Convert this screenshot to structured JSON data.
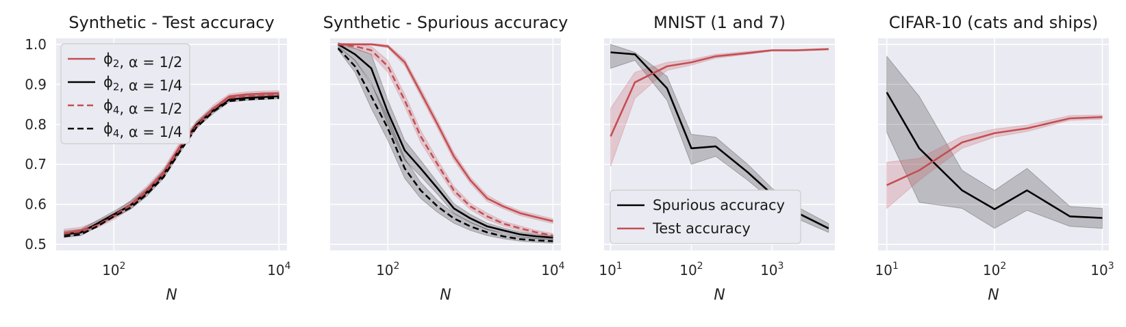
{
  "chart_data": [
    {
      "type": "line",
      "title": "Synthetic - Test accuracy",
      "xlabel": "N",
      "ylabel": "",
      "xscale": "log",
      "xlim": [
        20,
        12500
      ],
      "ylim": [
        0.485,
        1.015
      ],
      "yticks": [
        0.5,
        0.6,
        0.7,
        0.8,
        0.9,
        1.0
      ],
      "ytick_labels": [
        "0.5",
        "0.6",
        "0.7",
        "0.8",
        "0.9",
        "1.0"
      ],
      "xticks": [
        {
          "value": 100,
          "base": "10",
          "exp": "2"
        },
        {
          "value": 10000,
          "base": "10",
          "exp": "4"
        }
      ],
      "show_y_tick_labels": true,
      "legend": {
        "position": "top-left",
        "entries": [
          {
            "label": "ϕ₂, α = 1/2",
            "color": "#c44e52",
            "dash": "solid"
          },
          {
            "label": "ϕ₂, α = 1/4",
            "color": "#000000",
            "dash": "solid"
          },
          {
            "label": "ϕ₄, α = 1/2",
            "color": "#c44e52",
            "dash": "dashed"
          },
          {
            "label": "ϕ₄, α = 1/4",
            "color": "#000000",
            "dash": "dashed"
          }
        ]
      },
      "series": [
        {
          "name": "ϕ₂, α = 1/2",
          "color": "#c44e52",
          "dash": "solid",
          "x": [
            25,
            40,
            63,
            100,
            160,
            250,
            400,
            630,
            1000,
            1600,
            2500,
            4000,
            6300,
            10000
          ],
          "y": [
            0.528,
            0.535,
            0.55,
            0.57,
            0.6,
            0.635,
            0.68,
            0.745,
            0.8,
            0.84,
            0.87,
            0.875,
            0.877,
            0.878
          ],
          "band": [
            0.01,
            0.008,
            0.008,
            0.008,
            0.01,
            0.01,
            0.01,
            0.01,
            0.008,
            0.008,
            0.006,
            0.006,
            0.006,
            0.006
          ]
        },
        {
          "name": "ϕ₂, α = 1/4",
          "color": "#000000",
          "dash": "solid",
          "x": [
            25,
            40,
            63,
            100,
            160,
            250,
            400,
            630,
            1000,
            1600,
            2500,
            4000,
            6300,
            10000
          ],
          "y": [
            0.525,
            0.53,
            0.552,
            0.575,
            0.598,
            0.63,
            0.675,
            0.738,
            0.798,
            0.835,
            0.862,
            0.866,
            0.868,
            0.87
          ],
          "band": [
            0.008,
            0.008,
            0.008,
            0.008,
            0.01,
            0.01,
            0.01,
            0.01,
            0.008,
            0.008,
            0.006,
            0.006,
            0.006,
            0.006
          ]
        },
        {
          "name": "ϕ₄, α = 1/2",
          "color": "#c44e52",
          "dash": "dashed",
          "x": [
            25,
            40,
            63,
            100,
            160,
            250,
            400,
            630,
            1000,
            1600,
            2500,
            4000,
            6300,
            10000
          ],
          "y": [
            0.527,
            0.532,
            0.548,
            0.572,
            0.598,
            0.632,
            0.676,
            0.74,
            0.795,
            0.838,
            0.866,
            0.87,
            0.872,
            0.874
          ],
          "band": []
        },
        {
          "name": "ϕ₄, α = 1/4",
          "color": "#000000",
          "dash": "dashed",
          "x": [
            25,
            40,
            63,
            100,
            160,
            250,
            400,
            630,
            1000,
            1600,
            2500,
            4000,
            6300,
            10000
          ],
          "y": [
            0.52,
            0.525,
            0.545,
            0.57,
            0.592,
            0.625,
            0.668,
            0.732,
            0.792,
            0.832,
            0.858,
            0.862,
            0.864,
            0.866
          ],
          "band": []
        }
      ]
    },
    {
      "type": "line",
      "title": "Synthetic - Spurious accuracy",
      "xlabel": "N",
      "ylabel": "",
      "xscale": "log",
      "xlim": [
        20,
        12500
      ],
      "ylim": [
        0.485,
        1.015
      ],
      "yticks": [
        0.5,
        0.6,
        0.7,
        0.8,
        0.9,
        1.0
      ],
      "ytick_labels": [
        "0.5",
        "0.6",
        "0.7",
        "0.8",
        "0.9",
        "1.0"
      ],
      "xticks": [
        {
          "value": 100,
          "base": "10",
          "exp": "2"
        },
        {
          "value": 10000,
          "base": "10",
          "exp": "4"
        }
      ],
      "show_y_tick_labels": false,
      "series": [
        {
          "name": "ϕ₂, α = 1/2",
          "color": "#c44e52",
          "dash": "solid",
          "x": [
            25,
            40,
            63,
            100,
            160,
            250,
            400,
            630,
            1000,
            1600,
            2500,
            4000,
            6300,
            10000
          ],
          "y": [
            1.0,
            1.0,
            1.0,
            0.995,
            0.955,
            0.88,
            0.8,
            0.72,
            0.66,
            0.615,
            0.595,
            0.578,
            0.568,
            0.558
          ],
          "band": [
            0.002,
            0.002,
            0.002,
            0.004,
            0.008,
            0.01,
            0.01,
            0.01,
            0.008,
            0.008,
            0.006,
            0.006,
            0.006,
            0.006
          ]
        },
        {
          "name": "ϕ₂, α = 1/4",
          "color": "#000000",
          "dash": "solid",
          "x": [
            25,
            40,
            63,
            100,
            160,
            250,
            400,
            630,
            1000,
            1600,
            2500,
            4000,
            6300,
            10000
          ],
          "y": [
            1.0,
            0.975,
            0.94,
            0.83,
            0.735,
            0.69,
            0.64,
            0.59,
            0.565,
            0.545,
            0.535,
            0.525,
            0.52,
            0.517
          ],
          "band": [
            0.004,
            0.015,
            0.035,
            0.03,
            0.025,
            0.02,
            0.015,
            0.012,
            0.01,
            0.008,
            0.006,
            0.006,
            0.005,
            0.005
          ]
        },
        {
          "name": "ϕ₄, α = 1/2",
          "color": "#c44e52",
          "dash": "dashed",
          "x": [
            25,
            40,
            63,
            100,
            160,
            250,
            400,
            630,
            1000,
            1600,
            2500,
            4000,
            6300,
            10000
          ],
          "y": [
            1.0,
            0.995,
            0.985,
            0.945,
            0.86,
            0.77,
            0.7,
            0.635,
            0.595,
            0.57,
            0.552,
            0.54,
            0.53,
            0.522
          ],
          "band": [
            0.003,
            0.006,
            0.01,
            0.015,
            0.015,
            0.015,
            0.012,
            0.01,
            0.008,
            0.008,
            0.006,
            0.006,
            0.005,
            0.005
          ]
        },
        {
          "name": "ϕ₄, α = 1/4",
          "color": "#000000",
          "dash": "dashed",
          "x": [
            25,
            40,
            63,
            100,
            160,
            250,
            400,
            630,
            1000,
            1600,
            2500,
            4000,
            6300,
            10000
          ],
          "y": [
            0.99,
            0.945,
            0.87,
            0.79,
            0.69,
            0.635,
            0.595,
            0.565,
            0.545,
            0.53,
            0.52,
            0.513,
            0.51,
            0.508
          ],
          "band": [
            0.004,
            0.015,
            0.03,
            0.03,
            0.025,
            0.02,
            0.015,
            0.012,
            0.01,
            0.008,
            0.006,
            0.005,
            0.005,
            0.005
          ]
        }
      ]
    },
    {
      "type": "line",
      "title": "MNIST (1 and 7)",
      "xlabel": "N",
      "ylabel": "",
      "xscale": "log",
      "xlim": [
        8.3,
        6000
      ],
      "ylim": [
        0.485,
        1.015
      ],
      "yticks": [
        0.5,
        0.6,
        0.7,
        0.8,
        0.9,
        1.0
      ],
      "ytick_labels": [
        "0.5",
        "0.6",
        "0.7",
        "0.8",
        "0.9",
        "1.0"
      ],
      "xticks": [
        {
          "value": 10,
          "base": "10",
          "exp": "1"
        },
        {
          "value": 100,
          "base": "10",
          "exp": "2"
        },
        {
          "value": 1000,
          "base": "10",
          "exp": "3"
        }
      ],
      "show_y_tick_labels": false,
      "legend": {
        "position": "bottom-left",
        "entries": [
          {
            "label": "Spurious accuracy",
            "color": "#000000",
            "dash": "solid"
          },
          {
            "label": "Test accuracy",
            "color": "#c44e52",
            "dash": "solid"
          }
        ]
      },
      "series": [
        {
          "name": "Spurious accuracy",
          "color": "#000000",
          "dash": "solid",
          "x": [
            10,
            20,
            50,
            100,
            200,
            500,
            1000,
            2000,
            5000
          ],
          "y": [
            0.98,
            0.975,
            0.89,
            0.74,
            0.745,
            0.68,
            0.625,
            0.58,
            0.54
          ],
          "lower": [
            0.94,
            0.96,
            0.86,
            0.7,
            0.72,
            0.66,
            0.61,
            0.565,
            0.53
          ],
          "upper": [
            1.0,
            0.98,
            0.92,
            0.775,
            0.768,
            0.7,
            0.64,
            0.595,
            0.552
          ]
        },
        {
          "name": "Test accuracy",
          "color": "#c44e52",
          "dash": "solid",
          "x": [
            10,
            20,
            50,
            100,
            200,
            500,
            1000,
            2000,
            5000
          ],
          "y": [
            0.77,
            0.905,
            0.945,
            0.955,
            0.97,
            0.978,
            0.985,
            0.985,
            0.988
          ],
          "lower": [
            0.695,
            0.865,
            0.935,
            0.948,
            0.965,
            0.975,
            0.983,
            0.983,
            0.986
          ],
          "upper": [
            0.84,
            0.93,
            0.955,
            0.962,
            0.975,
            0.982,
            0.987,
            0.987,
            0.99
          ]
        }
      ]
    },
    {
      "type": "line",
      "title": "CIFAR-10 (cats and ships)",
      "xlabel": "N",
      "ylabel": "",
      "xscale": "log",
      "xlim": [
        8.3,
        1150
      ],
      "ylim": [
        0.485,
        1.015
      ],
      "yticks": [
        0.5,
        0.6,
        0.7,
        0.8,
        0.9,
        1.0
      ],
      "ytick_labels": [
        "0.5",
        "0.6",
        "0.7",
        "0.8",
        "0.9",
        "1.0"
      ],
      "xticks": [
        {
          "value": 10,
          "base": "10",
          "exp": "1"
        },
        {
          "value": 100,
          "base": "10",
          "exp": "2"
        },
        {
          "value": 1000,
          "base": "10",
          "exp": "3"
        }
      ],
      "show_y_tick_labels": false,
      "series": [
        {
          "name": "Spurious accuracy",
          "color": "#000000",
          "dash": "solid",
          "x": [
            10,
            20,
            50,
            100,
            200,
            500,
            1000
          ],
          "y": [
            0.88,
            0.74,
            0.635,
            0.588,
            0.635,
            0.57,
            0.566
          ],
          "lower": [
            0.78,
            0.605,
            0.59,
            0.54,
            0.585,
            0.545,
            0.54
          ],
          "upper": [
            0.97,
            0.87,
            0.685,
            0.635,
            0.69,
            0.595,
            0.59
          ]
        },
        {
          "name": "Test accuracy",
          "color": "#c44e52",
          "dash": "solid",
          "x": [
            10,
            20,
            50,
            100,
            200,
            500,
            1000
          ],
          "y": [
            0.648,
            0.685,
            0.755,
            0.778,
            0.79,
            0.815,
            0.818
          ],
          "lower": [
            0.59,
            0.66,
            0.74,
            0.768,
            0.782,
            0.81,
            0.813
          ],
          "upper": [
            0.705,
            0.715,
            0.77,
            0.788,
            0.798,
            0.822,
            0.823
          ]
        }
      ]
    }
  ]
}
